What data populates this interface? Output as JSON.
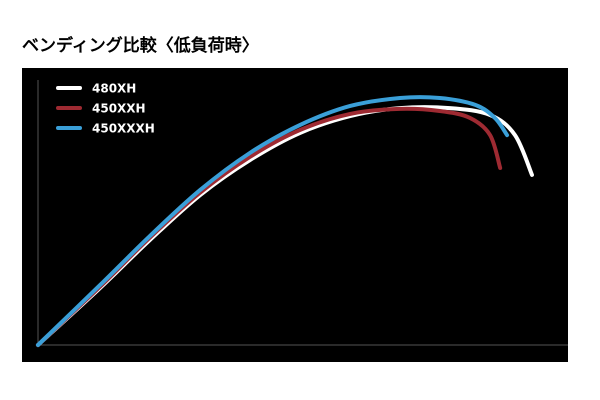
{
  "chart_data": {
    "type": "line",
    "title": "ベンディング比較〈低負荷時〉",
    "xlim": [
      0,
      100
    ],
    "ylim": [
      0,
      100
    ],
    "series": [
      {
        "name": "480XH",
        "color": "#ffffff",
        "x": [
          0,
          11.7,
          21.1,
          30.6,
          40,
          49.4,
          58.9,
          68.3,
          77.7,
          85.3,
          90,
          93.2
        ],
        "values": [
          0,
          21.5,
          39.6,
          56.6,
          69.8,
          80,
          86.4,
          89.4,
          89.4,
          86.8,
          79.2,
          64.2
        ]
      },
      {
        "name": "450XXH",
        "color": "#9e2a32",
        "x": [
          0,
          11.7,
          21.1,
          30.6,
          40,
          49.4,
          58.9,
          68.3,
          75.8,
          81.5,
          85.3,
          87.2
        ],
        "values": [
          0,
          22,
          40.5,
          57.5,
          71,
          81.1,
          87.2,
          89.1,
          88.3,
          85.7,
          79.2,
          66.8
        ]
      },
      {
        "name": "450XXXH",
        "color": "#3a9fd8",
        "x": [
          0,
          11.7,
          21.1,
          30.6,
          40,
          49.4,
          58.9,
          68.3,
          75.8,
          82.5,
          86.2,
          88.5
        ],
        "values": [
          0,
          22.6,
          41.1,
          58.5,
          72.5,
          83,
          90.2,
          93.2,
          93.2,
          90.6,
          85.7,
          79.2
        ]
      }
    ]
  }
}
